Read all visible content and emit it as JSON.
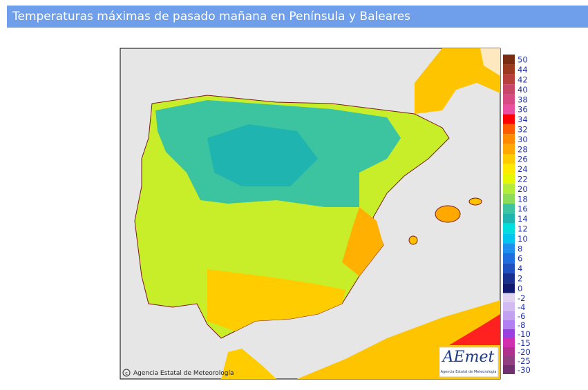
{
  "header": {
    "title": "Temperaturas máximas de pasado mañana en Península y Baleares"
  },
  "map": {
    "copyright": "Agencia Estatal de Meteorología",
    "logo": {
      "name": "AEmet",
      "subtitle": "Agencia Estatal de Meteorología"
    }
  },
  "legend": {
    "positive": [
      {
        "value": 50,
        "color": "#7a2c12"
      },
      {
        "value": 44,
        "color": "#9c3a20"
      },
      {
        "value": 42,
        "color": "#b8403a"
      },
      {
        "value": 40,
        "color": "#c84668"
      },
      {
        "value": 38,
        "color": "#d84a82"
      },
      {
        "value": 36,
        "color": "#ea4fa2"
      },
      {
        "value": 34,
        "color": "#ff0000"
      },
      {
        "value": 32,
        "color": "#ff5a00"
      },
      {
        "value": 30,
        "color": "#ff8a00"
      },
      {
        "value": 28,
        "color": "#ffa800"
      },
      {
        "value": 26,
        "color": "#ffcc00"
      },
      {
        "value": 24,
        "color": "#ffea00"
      },
      {
        "value": 22,
        "color": "#e6f800"
      },
      {
        "value": 20,
        "color": "#b4ec3a"
      },
      {
        "value": 18,
        "color": "#8cdc5a"
      },
      {
        "value": 16,
        "color": "#3cc4a0"
      },
      {
        "value": 14,
        "color": "#20b4b0"
      },
      {
        "value": 12,
        "color": "#00dede"
      },
      {
        "value": 10,
        "color": "#00c6f0"
      },
      {
        "value": 8,
        "color": "#2090f0"
      },
      {
        "value": 6,
        "color": "#1e6ee0"
      },
      {
        "value": 4,
        "color": "#1e50c0"
      },
      {
        "value": 2,
        "color": "#1a3090"
      },
      {
        "value": 0,
        "color": "#101870"
      }
    ],
    "negative": [
      {
        "value": -2,
        "color": "#e2d2f2"
      },
      {
        "value": -4,
        "color": "#d2baf2"
      },
      {
        "value": -6,
        "color": "#c2a2f0"
      },
      {
        "value": -8,
        "color": "#b080f0"
      },
      {
        "value": -10,
        "color": "#9a40e0"
      },
      {
        "value": -15,
        "color": "#d030b0"
      },
      {
        "value": -20,
        "color": "#b03090"
      },
      {
        "value": -25,
        "color": "#904080"
      },
      {
        "value": -30,
        "color": "#703070"
      }
    ]
  }
}
